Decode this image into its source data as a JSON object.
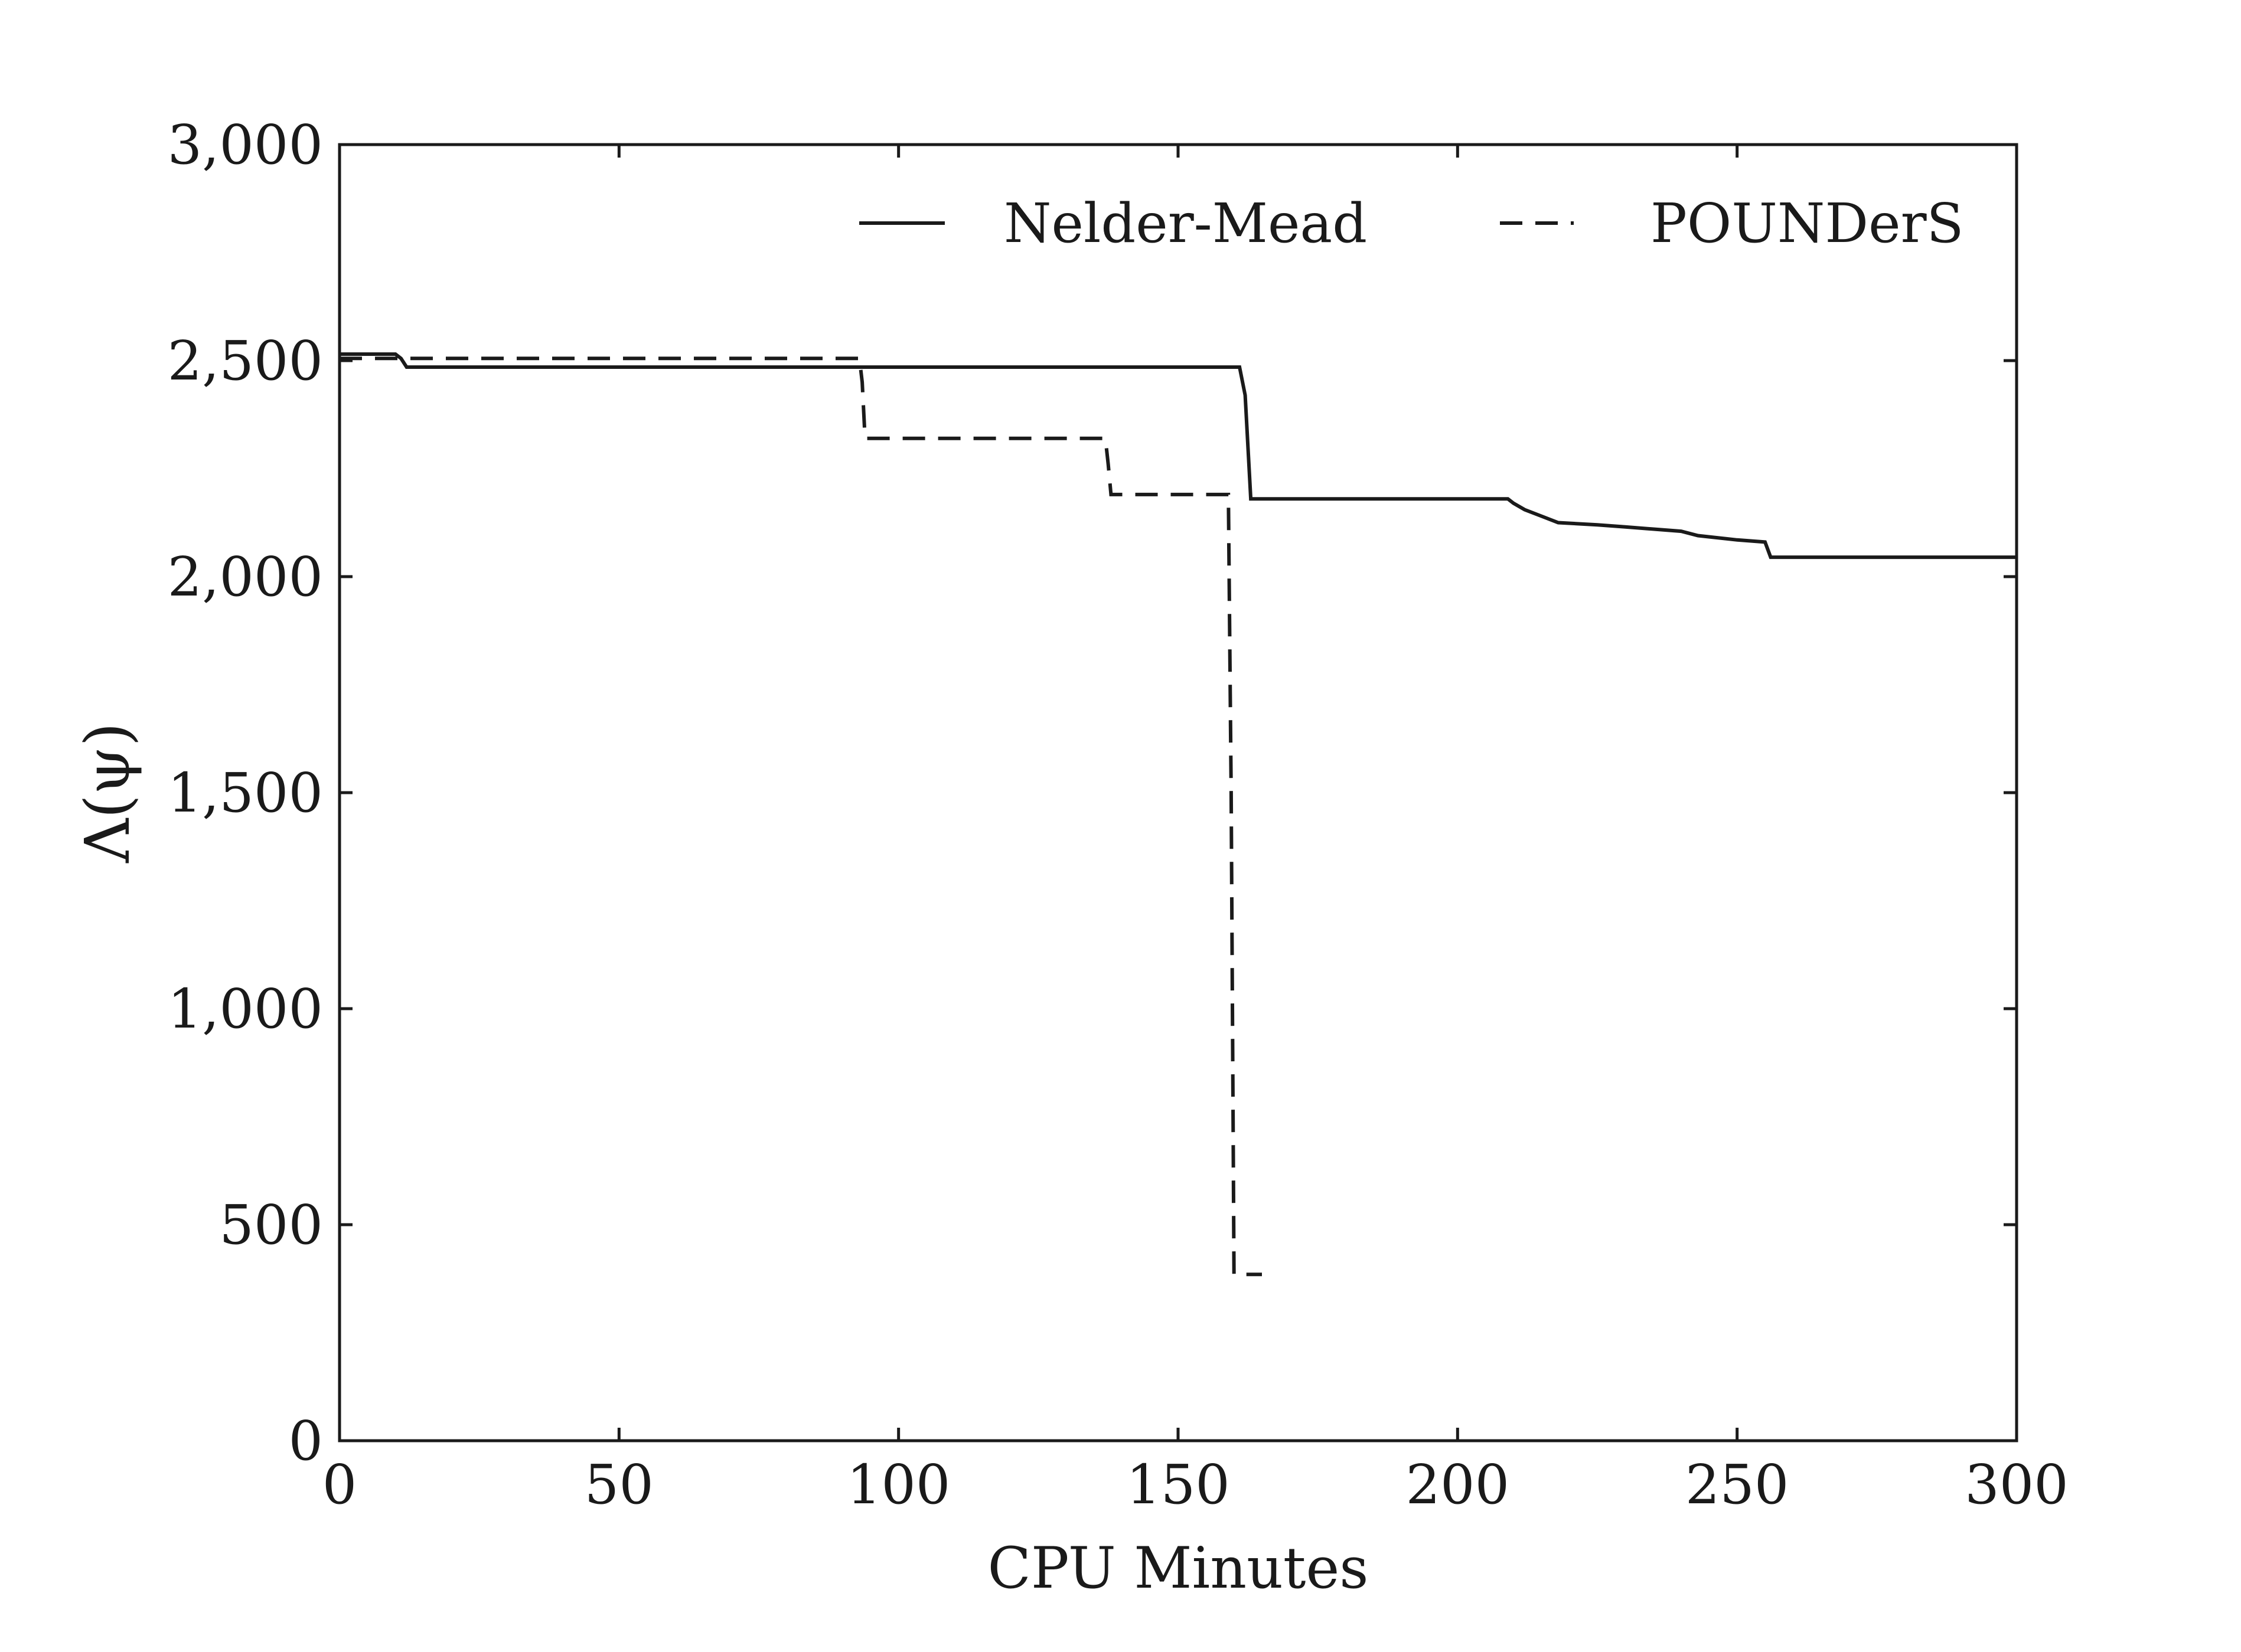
{
  "chart_data": {
    "type": "line",
    "title": "",
    "xlabel": "CPU Minutes",
    "ylabel": "Λ(ψ)",
    "xlim": [
      0,
      300
    ],
    "ylim": [
      0,
      3000
    ],
    "x_ticks": [
      0,
      50,
      100,
      150,
      200,
      250,
      300
    ],
    "x_tick_labels": [
      "0",
      "50",
      "100",
      "150",
      "200",
      "250",
      "300"
    ],
    "y_ticks": [
      0,
      500,
      1000,
      1500,
      2000,
      2500,
      3000
    ],
    "y_tick_labels": [
      "0",
      "500",
      "1,000",
      "1,500",
      "2,000",
      "2,500",
      "3,000"
    ],
    "grid": false,
    "legend_position": "top",
    "series": [
      {
        "name": "Nelder-Mead",
        "style": "solid",
        "color": "#1a1a1a",
        "x": [
          0,
          10,
          11,
          12,
          161,
          162,
          163,
          209,
          210,
          212,
          215,
          218,
          225,
          230,
          240,
          243,
          250,
          255,
          256,
          300
        ],
        "y": [
          2515,
          2515,
          2505,
          2485,
          2485,
          2420,
          2180,
          2180,
          2170,
          2155,
          2140,
          2125,
          2120,
          2115,
          2105,
          2095,
          2085,
          2080,
          2045,
          2045
        ]
      },
      {
        "name": "POUNDerS",
        "style": "dashed",
        "color": "#1a1a1a",
        "x": [
          0,
          93,
          93.5,
          94,
          137,
          137.5,
          138,
          159,
          159.5,
          160,
          165
        ],
        "y": [
          2505,
          2505,
          2450,
          2320,
          2320,
          2260,
          2190,
          2190,
          1500,
          385,
          385
        ]
      }
    ]
  }
}
